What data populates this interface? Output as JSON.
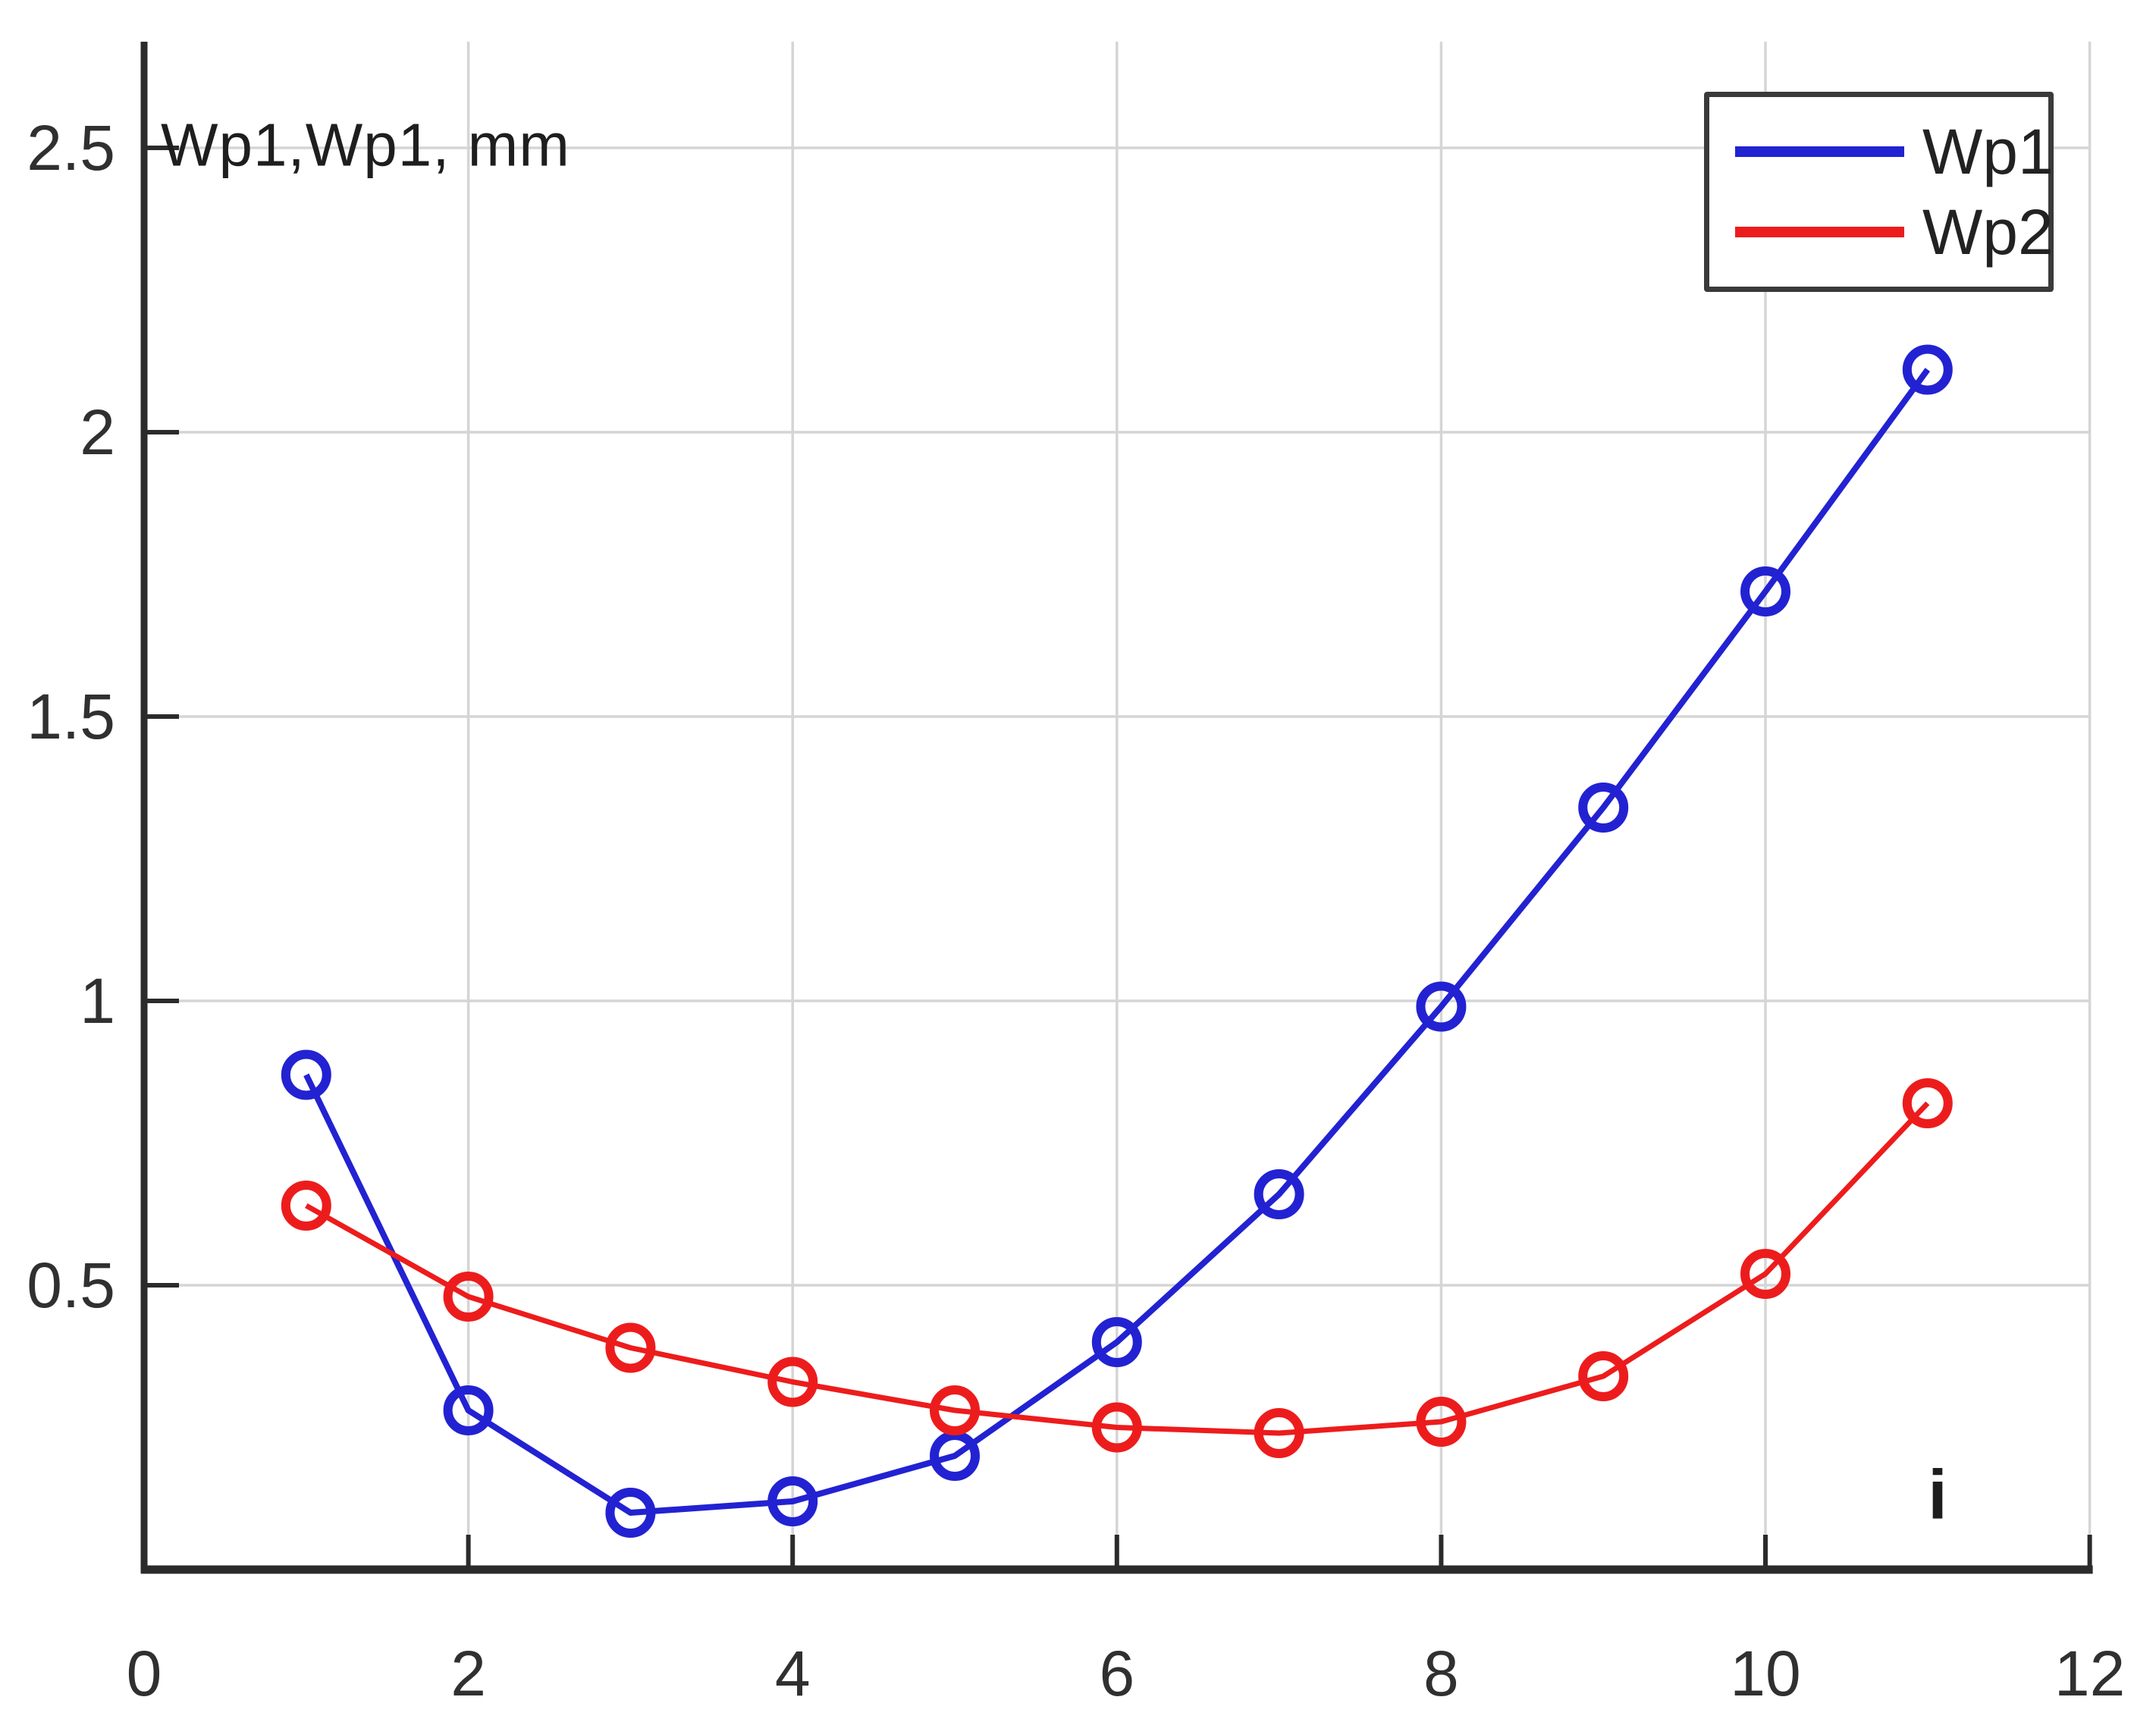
{
  "figure": {
    "background": "#ffffff"
  },
  "chart_data": {
    "type": "line",
    "x": [
      1,
      2,
      3,
      4,
      5,
      6,
      7,
      8,
      9,
      10,
      11
    ],
    "series": [
      {
        "name": "Wp1",
        "color": "#2222D2",
        "values": [
          0.87,
          0.28,
          0.1,
          0.12,
          0.2,
          0.4,
          0.66,
          0.99,
          1.34,
          1.72,
          2.11
        ]
      },
      {
        "name": "Wp2",
        "color": "#ED1C1C",
        "values": [
          0.64,
          0.48,
          0.39,
          0.33,
          0.28,
          0.25,
          0.24,
          0.26,
          0.34,
          0.52,
          0.82
        ]
      }
    ],
    "title": "",
    "xlabel": "i",
    "ylabel": "Wp1,Wp1, mm",
    "xlim": [
      0,
      12
    ],
    "ylim": [
      0,
      2.69
    ],
    "xticks": [
      0,
      2,
      4,
      6,
      8,
      10,
      12
    ],
    "yticks": [
      0.5,
      1,
      1.5,
      2,
      2.5
    ],
    "grid": true,
    "marker": "open-circle",
    "legend": {
      "position": "top-right",
      "entries": [
        "Wp1",
        "Wp2"
      ]
    },
    "colors": {
      "grid": "#D5D5D5",
      "axis": "#2B2B2B",
      "tick_label": "#303030",
      "text": "#1E1E1E",
      "legend_border": "#3A3A3A"
    }
  }
}
